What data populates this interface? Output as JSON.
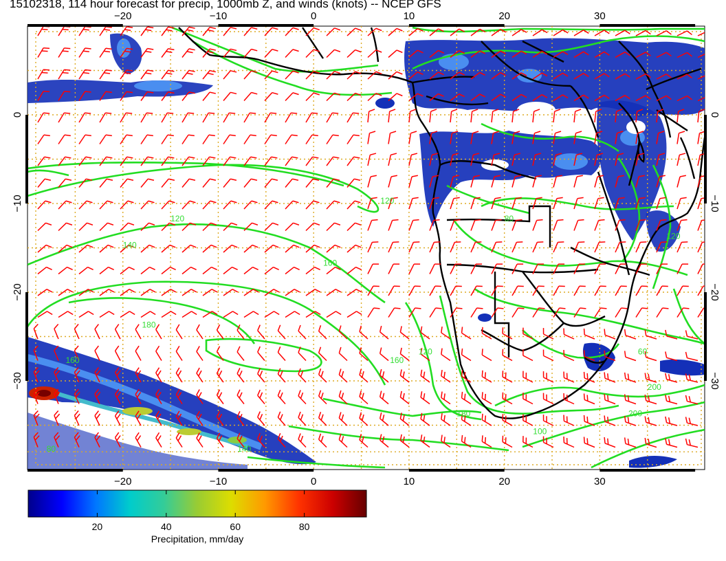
{
  "title": "15102318, 114 hour forecast for precip, 1000mb Z, and winds (knots) -- NCEP GFS",
  "map": {
    "lon_range": [
      -30,
      41
    ],
    "lat_range": [
      -40,
      10
    ],
    "lon_ticks": [
      -20,
      -10,
      0,
      10,
      20,
      30
    ],
    "lat_ticks": [
      0,
      -10,
      -20,
      -30
    ],
    "lon_tick_labels": [
      "−20",
      "−10",
      "0",
      "10",
      "20",
      "30"
    ],
    "lat_tick_labels": [
      "0",
      "−10",
      "−20",
      "−30"
    ],
    "contour_labels": [
      "120",
      "140",
      "160",
      "180",
      "120",
      "140",
      "160",
      "180",
      "200",
      "200",
      "80",
      "60",
      "120",
      "160",
      "80",
      "120",
      "100"
    ],
    "colors": {
      "contour": "#22dd22",
      "barb": "#ff0000",
      "grid": "#ddaa22",
      "coast": "#000000",
      "precip_low": "#0a1a9e",
      "precip_mid": "#4a7ef0"
    }
  },
  "colorbar": {
    "ticks": [
      "20",
      "40",
      "60",
      "80"
    ],
    "label": "Precipitation, mm/day",
    "range": [
      0,
      98
    ],
    "colormap": [
      "#00008b",
      "#0000ff",
      "#0077ff",
      "#00cccc",
      "#33cc99",
      "#99cc33",
      "#dddd00",
      "#ff9900",
      "#ff3300",
      "#cc0000",
      "#660000"
    ]
  }
}
